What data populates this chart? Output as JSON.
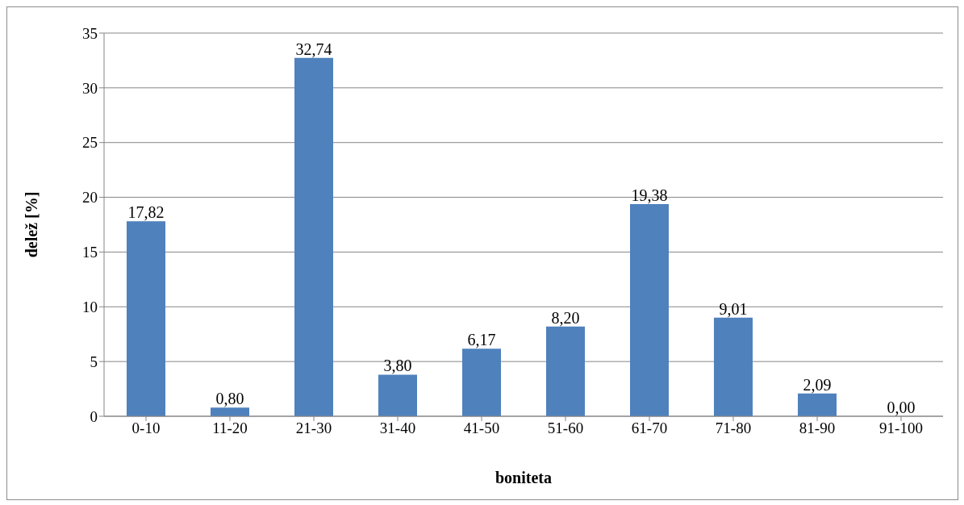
{
  "chart_data": {
    "type": "bar",
    "xlabel": "boniteta",
    "ylabel": "delež [%]",
    "categories": [
      "0-10",
      "11-20",
      "21-30",
      "31-40",
      "41-50",
      "51-60",
      "61-70",
      "71-80",
      "81-90",
      "91-100"
    ],
    "values": [
      17.82,
      0.8,
      32.74,
      3.8,
      6.17,
      8.2,
      19.38,
      9.01,
      2.09,
      0.0
    ],
    "value_labels": [
      "17,82",
      "0,80",
      "32,74",
      "3,80",
      "6,17",
      "8,20",
      "19,38",
      "9,01",
      "2,09",
      "0,00"
    ],
    "color": "#4f81bd",
    "ylim": [
      0,
      35
    ],
    "yticks": [
      0,
      5,
      10,
      15,
      20,
      25,
      30,
      35
    ],
    "grid": "y"
  }
}
